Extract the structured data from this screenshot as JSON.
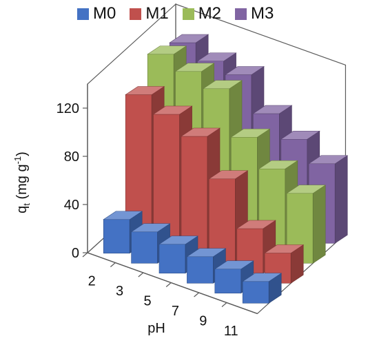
{
  "chart_data": {
    "type": "bar",
    "categories": [
      "2",
      "3",
      "5",
      "7",
      "9",
      "11"
    ],
    "series": [
      {
        "name": "M0",
        "values": [
          28,
          26,
          24,
          22,
          20,
          18
        ]
      },
      {
        "name": "M1",
        "values": [
          115,
          107,
          97,
          70,
          37,
          25
        ]
      },
      {
        "name": "M2",
        "values": [
          132,
          126,
          120,
          88,
          70,
          58
        ]
      },
      {
        "name": "M3",
        "values": [
          125,
          118,
          115,
          91,
          78,
          66
        ]
      }
    ],
    "colors": [
      "#4472c4",
      "#c0504d",
      "#9bbb59",
      "#8064a2"
    ],
    "xlabel": "pH",
    "ylabel_main": "q",
    "ylabel_sub": "t",
    "ylabel_unit_open": " (mg g",
    "ylabel_sup": "-1",
    "ylabel_unit_close": ")",
    "yticks": [
      "0",
      "40",
      "80",
      "120"
    ],
    "ylim": [
      0,
      140
    ]
  }
}
